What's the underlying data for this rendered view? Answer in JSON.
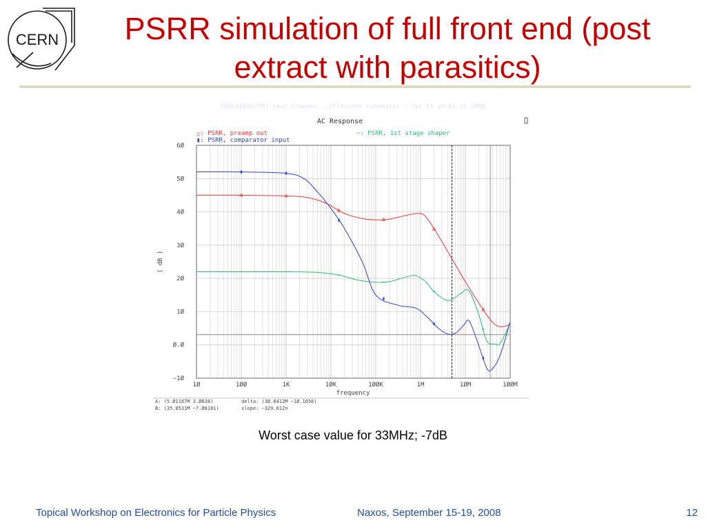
{
  "slide": {
    "logo_text": "CERN",
    "title_line1": "PSRR simulation of full front end (post",
    "title_line2": "extract with parasitics)",
    "faint_header": "FEDGRIDRS/T07.test_Channel.../FlexicHe schematic : Jan 31 18:01:33 2008",
    "caption": "Worst case value for 33MHz; -7dB",
    "footer_left": "Topical Workshop on Electronics for Particle Physics",
    "footer_mid": "Naxos, September 15-19, 2008",
    "page_number": "12"
  },
  "chart_data": {
    "type": "line",
    "title": "AC Response",
    "xlabel": "frequency",
    "ylabel": "( dB )",
    "xscale": "log",
    "xlim": [
      10,
      100000000
    ],
    "ylim": [
      -10,
      60
    ],
    "grid": true,
    "legend_position": "top",
    "x_tick_labels": [
      "1Ø",
      "1ØØ",
      "1K",
      "1ØK",
      "1ØØK",
      "1M",
      "1ØM",
      "1ØØM"
    ],
    "y_tick_labels": [
      "6Ø",
      "5Ø",
      "4Ø",
      "3Ø",
      "2Ø",
      "1Ø",
      "Ø.Ø",
      "−1Ø"
    ],
    "series": [
      {
        "name": "PSRR, preamp out",
        "marker": "△",
        "color": "#e03a3a",
        "points": [
          [
            10,
            45
          ],
          [
            100,
            45
          ],
          [
            1000,
            44.8
          ],
          [
            3000,
            44.3
          ],
          [
            8000,
            42.5
          ],
          [
            20000,
            39.5
          ],
          [
            50000,
            38
          ],
          [
            100000,
            37.6
          ],
          [
            200000,
            37.8
          ],
          [
            500000,
            39
          ],
          [
            1000000,
            39.5
          ],
          [
            1500000,
            37.5
          ],
          [
            3000000,
            31
          ],
          [
            10000000,
            19
          ],
          [
            30000000,
            9
          ],
          [
            50000000,
            5.8
          ],
          [
            75000000,
            5.6
          ],
          [
            100000000,
            6.2
          ]
        ]
      },
      {
        "name": "PSRR, 1st stage shaper",
        "marker": "−",
        "color": "#2fb87a",
        "points": [
          [
            10,
            22
          ],
          [
            100,
            22
          ],
          [
            1000,
            22
          ],
          [
            5000,
            21.8
          ],
          [
            15000,
            21
          ],
          [
            40000,
            19.5
          ],
          [
            100000,
            18.8
          ],
          [
            200000,
            19
          ],
          [
            500000,
            20.5
          ],
          [
            800000,
            20.8
          ],
          [
            1300000,
            19
          ],
          [
            2000000,
            16
          ],
          [
            3500000,
            13.6
          ],
          [
            5000000,
            13.6
          ],
          [
            8000000,
            15.5
          ],
          [
            12000000,
            16.3
          ],
          [
            20000000,
            9
          ],
          [
            30000000,
            1.2
          ],
          [
            45000000,
            0.3
          ],
          [
            60000000,
            0.5
          ],
          [
            100000000,
            6.5
          ]
        ]
      },
      {
        "name": "PSRR, comparator input",
        "marker": "▮",
        "color": "#2d44c8",
        "points": [
          [
            10,
            52
          ],
          [
            100,
            52
          ],
          [
            1000,
            51.6
          ],
          [
            2500,
            50
          ],
          [
            5000,
            46
          ],
          [
            10000,
            41
          ],
          [
            20000,
            35
          ],
          [
            50000,
            25
          ],
          [
            100000,
            15
          ],
          [
            300000,
            12
          ],
          [
            800000,
            11
          ],
          [
            1500000,
            8
          ],
          [
            2500000,
            5
          ],
          [
            4000000,
            3.3
          ],
          [
            6000000,
            3.5
          ],
          [
            9000000,
            5.8
          ],
          [
            12000000,
            7.3
          ],
          [
            18000000,
            1.5
          ],
          [
            30000000,
            -7
          ],
          [
            40000000,
            -7.2
          ],
          [
            60000000,
            -3
          ],
          [
            100000000,
            7
          ]
        ]
      }
    ],
    "cursors": {
      "A": "A: (5.Ø1187M  3.Ø838)",
      "B": "B: (35.8531M  −7.Ø8181)",
      "delta": "delta: (3Ø.8412M  −1Ø.1656)",
      "slope": "slope: −329.612n",
      "a_x": 5011870,
      "b_x": 35853100,
      "a_y": 3.0838
    }
  }
}
